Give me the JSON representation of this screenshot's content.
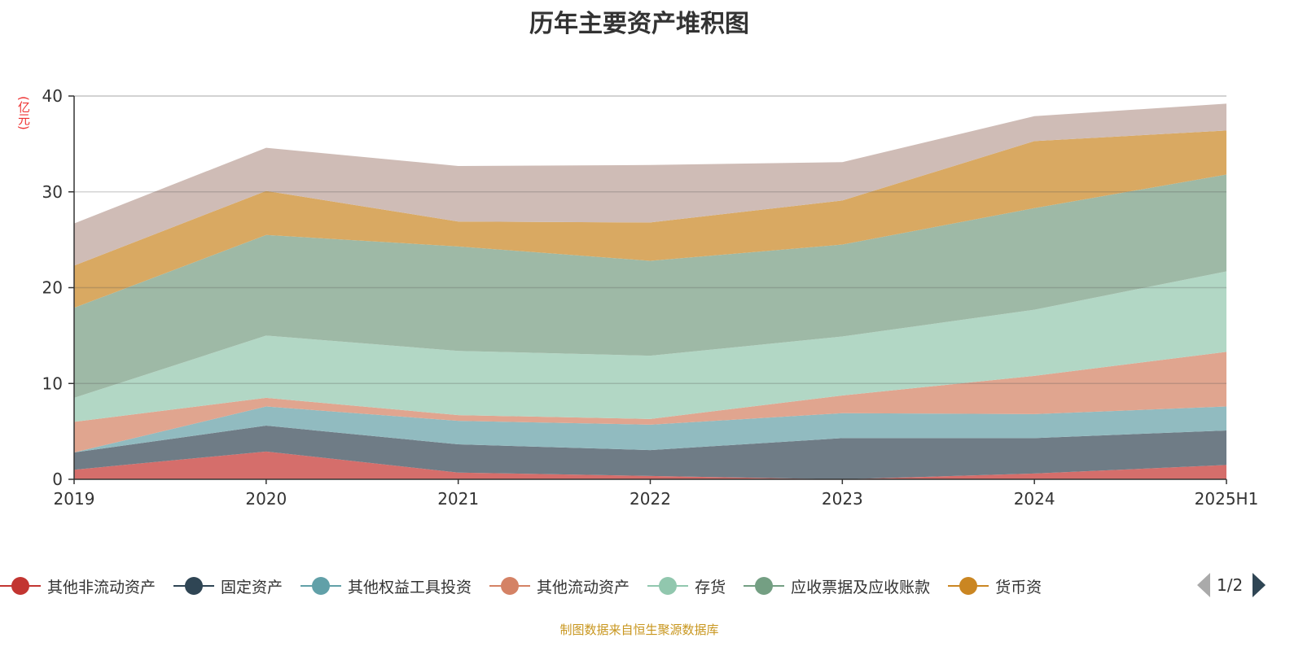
{
  "chart_data": {
    "type": "area",
    "stacked": true,
    "title": "历年主要资产堆积图",
    "ylabel": "(亿元)",
    "ylim": [
      0,
      40
    ],
    "yticks": [
      0,
      10,
      20,
      30,
      40
    ],
    "grid": true,
    "legend_position": "bottom",
    "categories": [
      "2019",
      "2020",
      "2021",
      "2022",
      "2023",
      "2024",
      "2025H1"
    ],
    "series": [
      {
        "name": "其他非流动资产",
        "color": "#c23531",
        "fill": "#d56e6b",
        "values": [
          1.0,
          2.9,
          0.7,
          0.35,
          0.0,
          0.6,
          1.5
        ]
      },
      {
        "name": "固定资产",
        "color": "#2f4554",
        "fill": "#6f7c86",
        "values": [
          1.8,
          2.7,
          2.95,
          2.7,
          4.3,
          3.7,
          3.6
        ]
      },
      {
        "name": "其他权益工具投资",
        "color": "#61a0a8",
        "fill": "#91bbc0",
        "values": [
          0.0,
          2.0,
          2.45,
          2.65,
          2.6,
          2.5,
          2.5
        ]
      },
      {
        "name": "其他流动资产",
        "color": "#d48265",
        "fill": "#e0a58f",
        "values": [
          3.2,
          0.9,
          0.6,
          0.6,
          1.85,
          4.0,
          5.7
        ]
      },
      {
        "name": "存货",
        "color": "#91c7ae",
        "fill": "#b2d7c5",
        "values": [
          2.5,
          6.5,
          6.7,
          6.6,
          6.15,
          6.9,
          8.4
        ]
      },
      {
        "name": "应收票据及应收账款",
        "color": "#749f83",
        "fill": "#9eb9a6",
        "values": [
          9.4,
          10.5,
          10.9,
          9.9,
          9.6,
          10.6,
          10.1
        ]
      },
      {
        "name": "货币资",
        "color": "#ca8622",
        "fill": "#d9a962",
        "values": [
          4.4,
          4.6,
          2.6,
          4.0,
          4.6,
          7.0,
          4.6
        ]
      },
      {
        "color": "#bda29a",
        "fill": "#cfbcb6",
        "values": [
          4.4,
          4.5,
          5.8,
          6.0,
          4.0,
          2.6,
          2.8
        ]
      }
    ]
  },
  "legend": {
    "page": "1/2"
  },
  "source": "制图数据来自恒生聚源数据库"
}
